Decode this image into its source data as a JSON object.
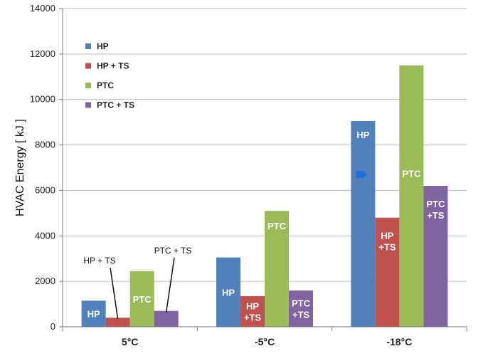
{
  "colors": {
    "hp": "#4f81bd",
    "hp_ts": "#c0504d",
    "ptc": "#9bbb59",
    "ptc_ts": "#8064a2",
    "grid": "#bfbfbf",
    "axis": "#7f7f7f",
    "arrow_marker": "#1f6fd9"
  },
  "chart_data": {
    "type": "bar",
    "ylabel": "HVAC Energy [ kJ ]",
    "xlabel": "",
    "ylim": [
      0,
      14000
    ],
    "yticks": [
      "0",
      "2000",
      "4000",
      "6000",
      "8000",
      "10000",
      "12000",
      "14000"
    ],
    "grid": true,
    "legend_position": "top-left",
    "categories": [
      "5°C",
      "-5°C",
      "-18°C"
    ],
    "series": [
      {
        "name": "HP",
        "color_key": "hp",
        "values": [
          1150,
          3050,
          9050
        ],
        "bar_labels": [
          "HP",
          "HP",
          "HP"
        ]
      },
      {
        "name": "HP + TS",
        "color_key": "hp_ts",
        "values": [
          400,
          1350,
          4800
        ],
        "bar_labels": [
          "",
          "HP\n+TS",
          "HP\n+TS"
        ]
      },
      {
        "name": "PTC",
        "color_key": "ptc",
        "values": [
          2450,
          5100,
          11500
        ],
        "bar_labels": [
          "PTC",
          "PTC",
          "PTC"
        ]
      },
      {
        "name": "PTC + TS",
        "color_key": "ptc_ts",
        "values": [
          700,
          1600,
          6200
        ],
        "bar_labels": [
          "",
          "PTC\n+TS",
          "PTC\n+TS"
        ]
      }
    ],
    "annotations": [
      {
        "text": "HP + TS",
        "category_index": 0,
        "series_index": 1
      },
      {
        "text": "PTC + TS",
        "category_index": 0,
        "series_index": 3
      }
    ],
    "marker_note": {
      "category_index": 2,
      "series_index": 0,
      "value": 6700
    }
  }
}
